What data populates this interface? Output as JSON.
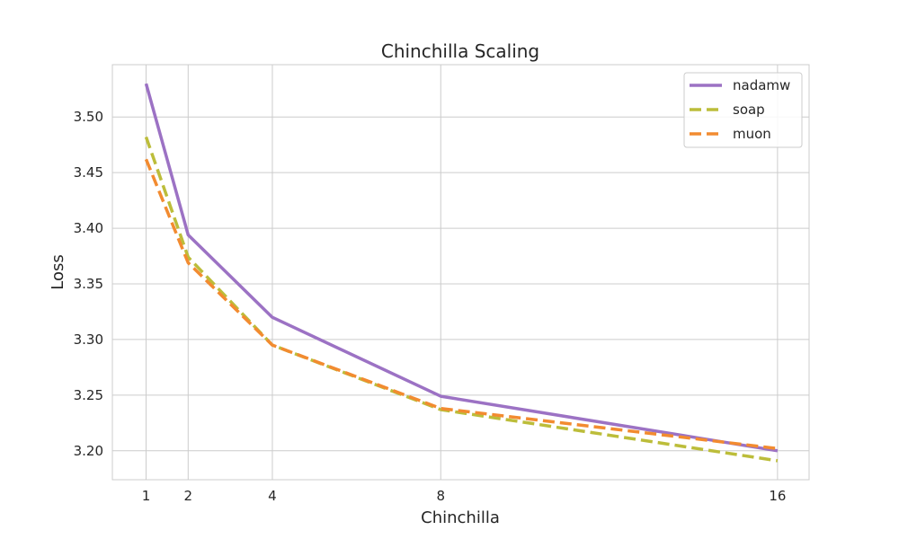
{
  "chart_data": {
    "type": "line",
    "title": "Chinchilla Scaling",
    "xlabel": "Chinchilla",
    "ylabel": "Loss",
    "x": [
      1,
      2,
      4,
      8,
      16
    ],
    "xticks": [
      "1",
      "2",
      "4",
      "8",
      "16"
    ],
    "yticks": [
      "3.20",
      "3.25",
      "3.30",
      "3.35",
      "3.40",
      "3.45",
      "3.50"
    ],
    "xlim": [
      0.2,
      16.75
    ],
    "ylim": [
      3.174,
      3.547
    ],
    "grid": true,
    "legend_position": "top-right",
    "series": [
      {
        "name": "nadamw",
        "values": [
          3.53,
          3.394,
          3.32,
          3.249,
          3.2
        ],
        "color": "#9c72c4",
        "dashed": false
      },
      {
        "name": "soap",
        "values": [
          3.482,
          3.374,
          3.295,
          3.237,
          3.191
        ],
        "color": "#bcbd3a",
        "dashed": true
      },
      {
        "name": "muon",
        "values": [
          3.462,
          3.369,
          3.295,
          3.238,
          3.202
        ],
        "color": "#f28b30",
        "dashed": true
      }
    ]
  }
}
